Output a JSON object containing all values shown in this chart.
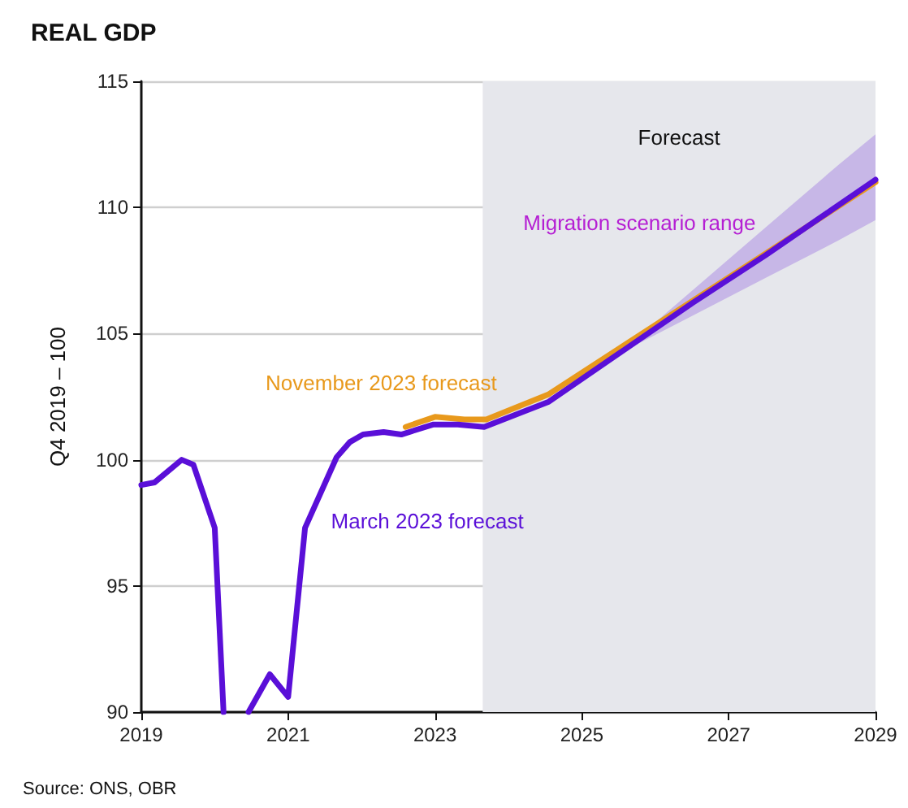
{
  "chart_data": {
    "type": "line",
    "title": "REAL GDP",
    "ylabel": "Q4 2019 – 100",
    "xlim": [
      2019,
      2029
    ],
    "xticks": [
      2019,
      2021,
      2023,
      2025,
      2027,
      2029
    ],
    "ylim": [
      90,
      115
    ],
    "yticks": [
      90,
      95,
      100,
      105,
      110,
      115
    ],
    "grid": "y",
    "legend": false,
    "marker": "none",
    "line_style": "solid",
    "bands": [
      {
        "axis": "x",
        "from": 2023.65,
        "to": 2029,
        "label": "Forecast",
        "color": "#e6e7ec"
      }
    ],
    "series": [
      {
        "name": "November 2023 forecast",
        "color": "#e8991c",
        "x": [
          2022.6,
          2023.0,
          2023.4,
          2023.7,
          2024.55,
          2029
        ],
        "values": [
          101.3,
          101.7,
          101.6,
          101.6,
          102.6,
          111.0
        ]
      },
      {
        "name": "March 2023 forecast",
        "color": "#5a0fd8",
        "x": [
          2019.0,
          2019.18,
          2019.55,
          2019.71,
          2020.0,
          2020.12,
          2020.3,
          2020.46,
          2020.75,
          2021.0,
          2021.23,
          2021.66,
          2021.84,
          2022.02,
          2022.3,
          2022.54,
          2022.98,
          2023.31,
          2023.67,
          2024.55,
          2025.5,
          2026.5,
          2027.5,
          2028.5,
          2029
        ],
        "values": [
          99.0,
          99.1,
          100.0,
          99.8,
          97.3,
          90,
          null,
          90,
          91.5,
          90.6,
          97.3,
          100.1,
          100.7,
          101.0,
          101.1,
          101.0,
          101.4,
          101.4,
          101.3,
          102.3,
          104.2,
          106.2,
          108.1,
          110.1,
          111.1
        ],
        "lower": [
          null,
          null,
          null,
          null,
          null,
          null,
          null,
          null,
          null,
          null,
          null,
          null,
          null,
          null,
          null,
          null,
          null,
          null,
          null,
          null,
          104.2,
          105.7,
          107.2,
          108.7,
          109.5
        ],
        "upper": [
          null,
          null,
          null,
          null,
          null,
          null,
          null,
          null,
          null,
          null,
          null,
          null,
          null,
          null,
          null,
          null,
          null,
          null,
          null,
          null,
          104.2,
          106.7,
          109.2,
          111.7,
          112.9
        ]
      }
    ],
    "annotations": [
      "Migration scenario range",
      "Source: ONS, OBR"
    ]
  }
}
